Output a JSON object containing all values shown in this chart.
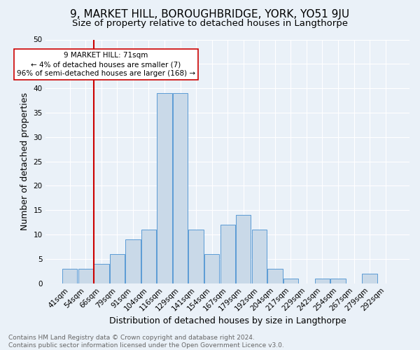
{
  "title1": "9, MARKET HILL, BOROUGHBRIDGE, YORK, YO51 9JU",
  "title2": "Size of property relative to detached houses in Langthorpe",
  "xlabel": "Distribution of detached houses by size in Langthorpe",
  "ylabel": "Number of detached properties",
  "footnote": "Contains HM Land Registry data © Crown copyright and database right 2024.\nContains public sector information licensed under the Open Government Licence v3.0.",
  "bin_labels": [
    "41sqm",
    "54sqm",
    "66sqm",
    "79sqm",
    "91sqm",
    "104sqm",
    "116sqm",
    "129sqm",
    "141sqm",
    "154sqm",
    "167sqm",
    "179sqm",
    "192sqm",
    "204sqm",
    "217sqm",
    "229sqm",
    "242sqm",
    "254sqm",
    "267sqm",
    "279sqm",
    "292sqm"
  ],
  "bar_heights": [
    3,
    3,
    4,
    6,
    9,
    11,
    39,
    39,
    11,
    6,
    12,
    14,
    11,
    3,
    1,
    0,
    1,
    1,
    0,
    2,
    0
  ],
  "bar_color": "#c9d9e8",
  "bar_edge_color": "#5b9bd5",
  "vline_x_idx": 2,
  "vline_color": "#cc0000",
  "annotation_text": "9 MARKET HILL: 71sqm\n← 4% of detached houses are smaller (7)\n96% of semi-detached houses are larger (168) →",
  "annotation_box_color": "#ffffff",
  "annotation_box_edge": "#cc0000",
  "ylim": [
    0,
    50
  ],
  "yticks": [
    0,
    5,
    10,
    15,
    20,
    25,
    30,
    35,
    40,
    45,
    50
  ],
  "bg_color": "#eaf1f8",
  "plot_bg_color": "#eaf1f8",
  "grid_color": "#ffffff",
  "title1_fontsize": 11,
  "title2_fontsize": 9.5,
  "xlabel_fontsize": 9,
  "ylabel_fontsize": 9,
  "footnote_fontsize": 6.5,
  "tick_fontsize": 7.5,
  "annot_fontsize": 7.5
}
